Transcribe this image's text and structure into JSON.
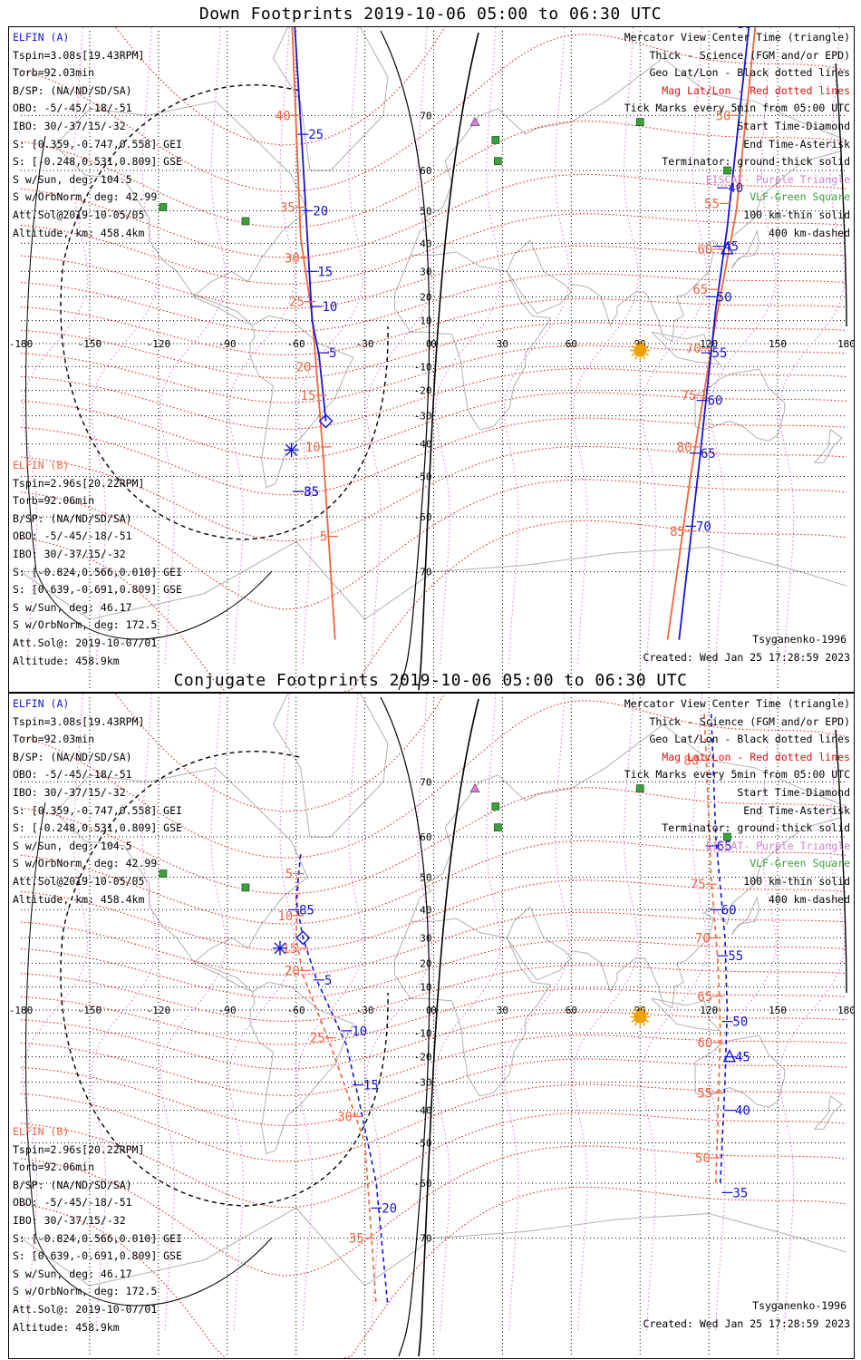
{
  "panels": [
    {
      "title": "Down Footprints 2019-10-06 05:00 to 06:30 UTC",
      "conj": false,
      "legend": [
        "Mercator View Center Time (triangle)",
        "Thick - Science (FGM and/or EPD)",
        "Geo Lat/Lon - Black dotted lines",
        "Mag Lat/Lon - Red dotted lines",
        "Tick Marks every 5min from 05:00 UTC",
        "Start Time-Diamond",
        "End Time-Asterisk",
        "Terminator: ground-thick solid",
        "EISCAT- Purple Triangle",
        "VLF-Green Square",
        "100 km-thin solid",
        "400 km-dashed"
      ],
      "credits": {
        "model": "Tsyganenko-1996",
        "created": "Created: Wed Jan 25 17:28:59 2023"
      },
      "a_tracks": [
        [
          [
            -61,
            81
          ],
          [
            -57,
            62
          ],
          [
            -53,
            10
          ],
          [
            -50,
            -5
          ],
          [
            -47,
            -32
          ]
        ],
        [
          [
            139,
            82
          ],
          [
            128,
            45
          ],
          [
            123,
            15
          ],
          [
            116,
            -45
          ],
          [
            107,
            -78
          ]
        ]
      ],
      "b_tracks": [
        [
          [
            -43,
            -78
          ],
          [
            -48,
            -45
          ],
          [
            -53,
            12
          ],
          [
            -58,
            42
          ],
          [
            -62,
            81
          ]
        ],
        [
          [
            141,
            81
          ],
          [
            132,
            50
          ],
          [
            123,
            10
          ],
          [
            112,
            -50
          ],
          [
            102,
            -78
          ]
        ]
      ],
      "a_ticks": [
        {
          "t": "25",
          "p": [
            -57,
            67
          ]
        },
        {
          "t": "20",
          "p": [
            -55,
            50
          ]
        },
        {
          "t": "15",
          "p": [
            -53,
            30
          ]
        },
        {
          "t": "10",
          "p": [
            -51,
            16
          ]
        },
        {
          "t": "5",
          "p": [
            -48,
            -4
          ]
        },
        {
          "t": "35",
          "p": [
            -59,
            -54
          ]
        },
        {
          "t": "85",
          "p": [
            -59,
            -54
          ]
        },
        {
          "t": "35",
          "p": [
            130,
            80
          ]
        },
        {
          "t": "40",
          "p": [
            126,
            56
          ]
        },
        {
          "t": "45",
          "p": [
            124,
            39
          ]
        },
        {
          "t": "50",
          "p": [
            121,
            20
          ]
        },
        {
          "t": "55",
          "p": [
            119,
            -4
          ]
        },
        {
          "t": "60",
          "p": [
            117,
            -24
          ]
        },
        {
          "t": "65",
          "p": [
            114,
            -43
          ]
        },
        {
          "t": "70",
          "p": [
            112,
            -62
          ]
        }
      ],
      "a_tick_fix": {
        "rm": 5
      },
      "b_ticks": [
        {
          "t": "40",
          "p": [
            -60,
            70
          ]
        },
        {
          "t": "35",
          "p": [
            -58,
            51
          ]
        },
        {
          "t": "30",
          "p": [
            -56,
            35
          ]
        },
        {
          "t": "25",
          "p": [
            -54,
            18
          ]
        },
        {
          "t": "20",
          "p": [
            -51,
            -10
          ]
        },
        {
          "t": "15",
          "p": [
            -49,
            -22
          ]
        },
        {
          "t": "10",
          "p": [
            -47,
            -41
          ]
        },
        {
          "t": "5",
          "p": [
            -44,
            -64
          ]
        },
        {
          "t": "50",
          "p": [
            132,
            70
          ]
        },
        {
          "t": "55",
          "p": [
            127,
            52
          ]
        },
        {
          "t": "60",
          "p": [
            124,
            38
          ]
        },
        {
          "t": "65",
          "p": [
            122,
            23
          ]
        },
        {
          "t": "70",
          "p": [
            119,
            -2
          ]
        },
        {
          "t": "75",
          "p": [
            117,
            -22
          ]
        },
        {
          "t": "80",
          "p": [
            115,
            -41
          ]
        },
        {
          "t": "85",
          "p": [
            112,
            -63
          ]
        }
      ],
      "start": [
        -47,
        -32
      ],
      "end": [
        -62,
        -42
      ],
      "center": [
        128,
        38
      ]
    },
    {
      "title": "Conjugate Footprints 2019-10-06 05:00 to 06:30 UTC",
      "conj": true,
      "legend": [
        "Mercator View Center Time (triangle)",
        "Thick - Science (FGM and/or EPD)",
        "Geo Lat/Lon - Black dotted lines",
        "Mag Lat/Lon - Red dotted lines",
        "Tick Marks every 5min from 05:00 UTC",
        "Start Time-Diamond",
        "End Time-Asterisk",
        "Terminator: ground-thick solid",
        "EISCAT- Purple Triangle",
        "VLF-Green Square",
        "100 km-thin solid",
        "400 km-dashed"
      ],
      "credits": {
        "model": "Tsyganenko-1996",
        "created": "Created: Wed Jan 25 17:28:59 2023"
      },
      "a_tracks": [
        [
          [
            -58,
            56
          ],
          [
            -60,
            43
          ],
          [
            -57,
            30
          ],
          [
            -51,
            13
          ],
          [
            -38,
            -15
          ],
          [
            -33,
            -35
          ],
          [
            -25,
            -60
          ],
          [
            -20,
            -78
          ]
        ],
        [
          [
            121,
            78
          ],
          [
            123,
            60
          ],
          [
            127,
            30
          ],
          [
            128,
            0
          ],
          [
            127,
            -30
          ],
          [
            125,
            -60
          ]
        ]
      ],
      "b_tracks": [
        [
          [
            -59,
            50
          ],
          [
            -60,
            30
          ],
          [
            -57,
            15
          ],
          [
            -45,
            -15
          ],
          [
            -30,
            -50
          ],
          [
            -25,
            -78
          ]
        ],
        [
          [
            118,
            78
          ],
          [
            121,
            50
          ],
          [
            124,
            20
          ],
          [
            125,
            -10
          ],
          [
            124,
            -40
          ],
          [
            123,
            -60
          ]
        ]
      ],
      "a_ticks": [
        {
          "t": "85",
          "p": [
            -61,
            40
          ]
        },
        {
          "t": "5",
          "p": [
            -50,
            13
          ]
        },
        {
          "t": "10",
          "p": [
            -38,
            -9
          ]
        },
        {
          "t": "15",
          "p": [
            -33,
            -31
          ]
        },
        {
          "t": "20",
          "p": [
            -25,
            -65
          ]
        },
        {
          "t": "65",
          "p": [
            121,
            58
          ]
        },
        {
          "t": "60",
          "p": [
            123,
            40
          ]
        },
        {
          "t": "55",
          "p": [
            126,
            23
          ]
        },
        {
          "t": "50",
          "p": [
            128,
            -5
          ]
        },
        {
          "t": "45",
          "p": [
            129,
            -20
          ]
        },
        {
          "t": "40",
          "p": [
            129,
            -40
          ]
        },
        {
          "t": "35",
          "p": [
            128,
            -62
          ]
        }
      ],
      "b_ticks": [
        {
          "t": "5",
          "p": [
            -59,
            51
          ]
        },
        {
          "t": "10",
          "p": [
            -59,
            38
          ]
        },
        {
          "t": "15",
          "p": [
            -57,
            26
          ]
        },
        {
          "t": "20",
          "p": [
            -56,
            17
          ]
        },
        {
          "t": "25",
          "p": [
            -45,
            -12
          ]
        },
        {
          "t": "30",
          "p": [
            -33,
            -42
          ]
        },
        {
          "t": "35",
          "p": [
            -28,
            -70
          ]
        },
        {
          "t": "80",
          "p": [
            118,
            73
          ]
        },
        {
          "t": "75",
          "p": [
            121,
            48
          ]
        },
        {
          "t": "70",
          "p": [
            123,
            30
          ]
        },
        {
          "t": "65",
          "p": [
            124,
            6
          ]
        },
        {
          "t": "60",
          "p": [
            124,
            -14
          ]
        },
        {
          "t": "55",
          "p": [
            124,
            -34
          ]
        },
        {
          "t": "50",
          "p": [
            123,
            -54
          ]
        }
      ],
      "start": [
        -57,
        30
      ],
      "end": [
        -67,
        26
      ],
      "center": [
        129,
        -20
      ]
    }
  ],
  "elfin_a": {
    "name": "ELFIN (A)",
    "lines": [
      "Tspin=3.08s[19.43RPM]",
      "Torb=92.03min",
      "B/SP: (NA/ND/SD/SA)",
      "OBO: -5/-45/-18/-51",
      "IBO: 30/-37/15/-32",
      "S: [0.359,-0.747,0.558] GEI",
      "S: [-0.248,0.531,0.809] GSE",
      "S w/Sun, deg: 104.5",
      "S w/OrbNorm, deg: 42.99",
      "Att.Sol@2019-10-05/05",
      "Altitude, km: 458.4km"
    ]
  },
  "elfin_b": {
    "name": "ELFIN (B)",
    "lines": [
      "Tspin=2.96s[20.22RPM]",
      "Torb=92.06min",
      "B/SP: (NA/ND/SD/SA)",
      "OBO: -5/-45/-18/-51",
      "IBO: 30/-37/15/-32",
      "S: [-0.824,0.566,0.010] GEI",
      "S: [0.639,-0.691,0.809] GSE",
      "S w/Sun, deg: 46.17",
      "S w/OrbNorm, deg: 172.5",
      "Att.Sol@: 2019-10-07/01",
      "Altitude: 458.9km"
    ]
  },
  "axes": {
    "lon_ticks": [
      "-180",
      "-150",
      "-120",
      "-90",
      "-60",
      "-30",
      "0",
      "30",
      "60",
      "90",
      "120",
      "150",
      "180"
    ],
    "lat_ticks": [
      "70",
      "60",
      "50",
      "40",
      "30",
      "20",
      "10",
      "0",
      "-10",
      "-20",
      "-30",
      "-40",
      "-50",
      "-60",
      "-70"
    ]
  },
  "sun": [
    90,
    -3
  ],
  "eiscat": [
    [
      18,
      83
    ],
    [
      18,
      69
    ]
  ],
  "vlf": [
    [
      27,
      66
    ],
    [
      28,
      62
    ],
    [
      90,
      69
    ],
    [
      128,
      60
    ],
    [
      -118,
      51
    ],
    [
      -82,
      47
    ]
  ],
  "colors": {
    "a": "#1414d2",
    "b": "#f0643c",
    "mag": "#e01010",
    "geo": "#000000",
    "eiscat": "#d27fd2",
    "vlf": "#3ca03c",
    "sun": "#f0a000",
    "coast": "#b0b0b0",
    "info_b": "#f0643c"
  }
}
